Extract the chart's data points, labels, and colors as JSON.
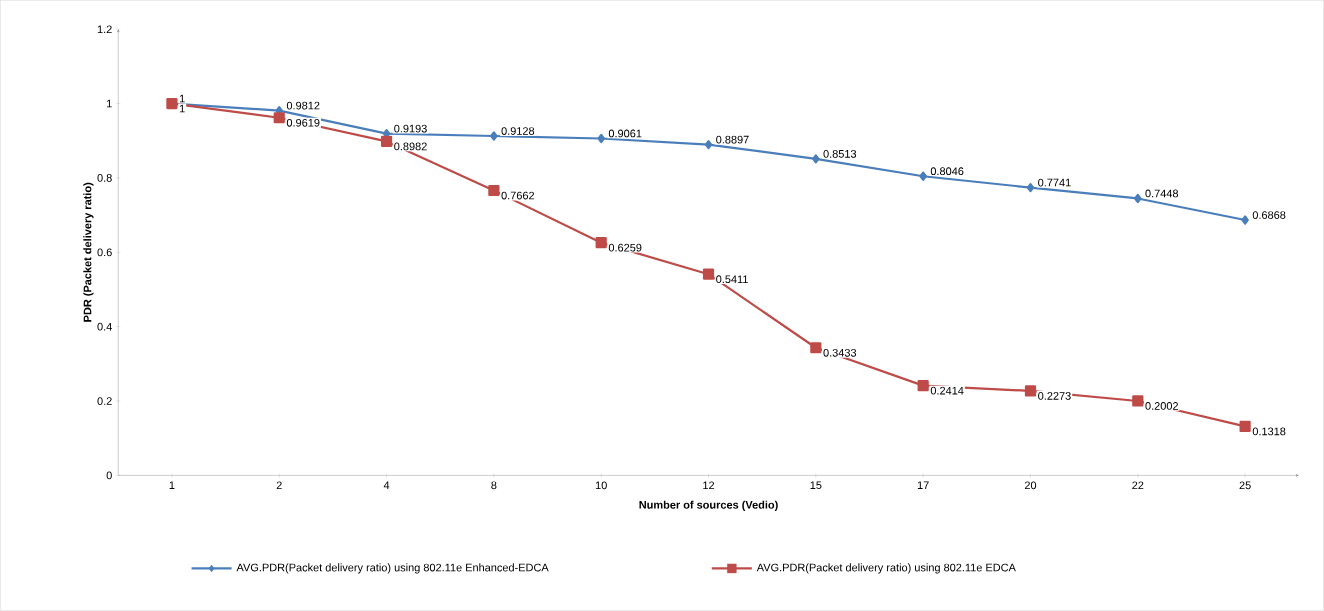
{
  "chart_data": {
    "type": "line",
    "xlabel": "Number of sources (Vedio)",
    "ylabel": "PDR  (Packet delivery ratio)",
    "categories": [
      "1",
      "2",
      "4",
      "8",
      "10",
      "12",
      "15",
      "17",
      "20",
      "22",
      "25"
    ],
    "ylim": [
      0,
      1.2
    ],
    "yticks": [
      0,
      0.2,
      0.4,
      0.6,
      0.8,
      1,
      1.2
    ],
    "grid": false,
    "legend": "bottom",
    "data_labels": true,
    "series": [
      {
        "name": "AVG.PDR(Packet delivery ratio) using 802.11e Enhanced-EDCA",
        "color": "#4a7ebb",
        "marker": "diamond",
        "values": [
          1,
          0.9812,
          0.9193,
          0.9128,
          0.9061,
          0.8897,
          0.8513,
          0.8046,
          0.7741,
          0.7448,
          0.6868
        ]
      },
      {
        "name": "AVG.PDR(Packet delivery ratio) using 802.11e EDCA",
        "color": "#be4b48",
        "marker": "square",
        "values": [
          1,
          0.9619,
          0.8982,
          0.7662,
          0.6259,
          0.5411,
          0.3433,
          0.2414,
          0.2273,
          0.2002,
          0.1318
        ]
      }
    ]
  }
}
